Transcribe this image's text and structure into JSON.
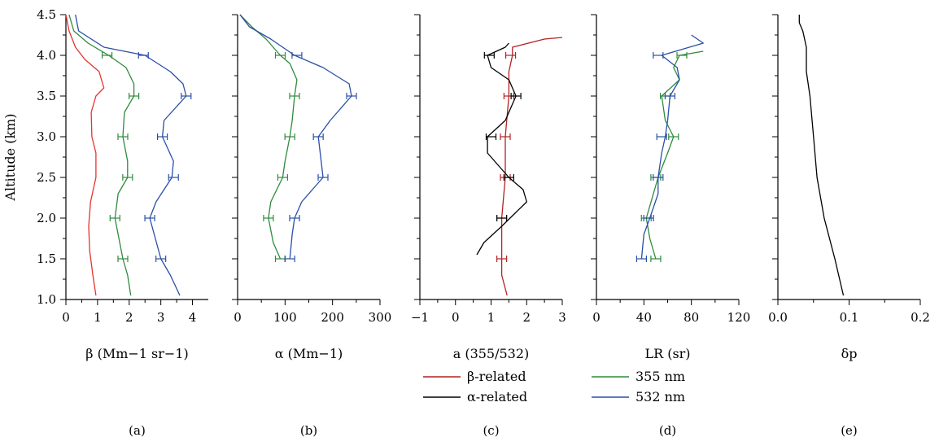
{
  "figure": {
    "ylabel": "Altitude (km)",
    "legend": [
      {
        "label": "β-related",
        "color": "#b22222"
      },
      {
        "label": "α-related",
        "color": "#000000"
      },
      {
        "label": "355 nm",
        "color": "#2e8b3d"
      },
      {
        "label": "532 nm",
        "color": "#2b4fa8"
      }
    ],
    "colors": {
      "red": "#e3342f",
      "dark_red": "#b22222",
      "green": "#2e8b3d",
      "blue": "#2b4fa8",
      "black": "#000000"
    }
  },
  "chart_data": [
    {
      "panel": "(a)",
      "type": "line",
      "xlabel": "β (Mm−1 sr−1)",
      "ylabel": "Altitude (km)",
      "xlim": [
        0,
        4.5
      ],
      "ylim": [
        1.0,
        4.5
      ],
      "xticks": [
        "0",
        "1",
        "2",
        "3",
        "4"
      ],
      "yticks": [
        "1.0",
        "1.5",
        "2.0",
        "2.5",
        "3.0",
        "3.5",
        "4.0",
        "4.5"
      ],
      "series": [
        {
          "color": "#e3342f",
          "points": [
            [
              0.95,
              1.05
            ],
            [
              0.85,
              1.3
            ],
            [
              0.75,
              1.6
            ],
            [
              0.72,
              1.9
            ],
            [
              0.78,
              2.2
            ],
            [
              0.95,
              2.5
            ],
            [
              0.95,
              2.8
            ],
            [
              0.82,
              3.0
            ],
            [
              0.8,
              3.3
            ],
            [
              0.95,
              3.5
            ],
            [
              1.2,
              3.6
            ],
            [
              1.05,
              3.8
            ],
            [
              0.6,
              3.95
            ],
            [
              0.3,
              4.1
            ],
            [
              0.1,
              4.3
            ],
            [
              0.0,
              4.5
            ]
          ]
        },
        {
          "color": "#2e8b3d",
          "points": [
            [
              2.05,
              1.05
            ],
            [
              1.95,
              1.3
            ],
            [
              1.8,
              1.5
            ],
            [
              1.55,
              2.0
            ],
            [
              1.65,
              2.3
            ],
            [
              1.95,
              2.5
            ],
            [
              1.95,
              2.7
            ],
            [
              1.8,
              3.0
            ],
            [
              1.85,
              3.3
            ],
            [
              2.15,
              3.5
            ],
            [
              2.15,
              3.65
            ],
            [
              1.9,
              3.85
            ],
            [
              1.35,
              4.0
            ],
            [
              0.7,
              4.15
            ],
            [
              0.25,
              4.3
            ],
            [
              0.1,
              4.5
            ]
          ],
          "error_bars": [
            [
              1.8,
              1.5
            ],
            [
              1.55,
              2.0
            ],
            [
              1.95,
              2.5
            ],
            [
              1.8,
              3.0
            ],
            [
              2.15,
              3.5
            ],
            [
              1.3,
              4.0
            ]
          ]
        },
        {
          "color": "#2b4fa8",
          "points": [
            [
              3.6,
              1.05
            ],
            [
              3.3,
              1.3
            ],
            [
              3.0,
              1.5
            ],
            [
              2.65,
              2.0
            ],
            [
              2.85,
              2.2
            ],
            [
              3.35,
              2.5
            ],
            [
              3.4,
              2.7
            ],
            [
              3.05,
              3.0
            ],
            [
              3.1,
              3.2
            ],
            [
              3.8,
              3.5
            ],
            [
              3.7,
              3.65
            ],
            [
              3.3,
              3.8
            ],
            [
              2.5,
              4.0
            ],
            [
              1.2,
              4.1
            ],
            [
              0.4,
              4.3
            ],
            [
              0.3,
              4.5
            ]
          ],
          "error_bars": [
            [
              3.0,
              1.5
            ],
            [
              2.65,
              2.0
            ],
            [
              3.4,
              2.5
            ],
            [
              3.05,
              3.0
            ],
            [
              3.8,
              3.5
            ],
            [
              2.45,
              4.0
            ]
          ]
        }
      ]
    },
    {
      "panel": "(b)",
      "type": "line",
      "xlabel": "α (Mm−1)",
      "ylabel": "",
      "xlim": [
        0,
        300
      ],
      "ylim": [
        1.0,
        4.5
      ],
      "xticks": [
        "0",
        "100",
        "200",
        "300"
      ],
      "series": [
        {
          "color": "#2e8b3d",
          "points": [
            [
              90,
              1.5
            ],
            [
              75,
              1.7
            ],
            [
              65,
              2.0
            ],
            [
              70,
              2.2
            ],
            [
              95,
              2.5
            ],
            [
              100,
              2.7
            ],
            [
              110,
              3.0
            ],
            [
              115,
              3.2
            ],
            [
              120,
              3.5
            ],
            [
              125,
              3.7
            ],
            [
              110,
              3.9
            ],
            [
              90,
              4.0
            ],
            [
              60,
              4.2
            ],
            [
              30,
              4.35
            ],
            [
              5,
              4.5
            ]
          ],
          "error_bars": [
            [
              90,
              1.5
            ],
            [
              65,
              2.0
            ],
            [
              95,
              2.5
            ],
            [
              110,
              3.0
            ],
            [
              120,
              3.5
            ],
            [
              90,
              4.0
            ]
          ]
        },
        {
          "color": "#2b4fa8",
          "points": [
            [
              110,
              1.5
            ],
            [
              115,
              1.8
            ],
            [
              120,
              2.0
            ],
            [
              135,
              2.2
            ],
            [
              180,
              2.5
            ],
            [
              175,
              2.75
            ],
            [
              170,
              3.0
            ],
            [
              195,
              3.2
            ],
            [
              240,
              3.5
            ],
            [
              235,
              3.65
            ],
            [
              180,
              3.85
            ],
            [
              120,
              4.0
            ],
            [
              70,
              4.2
            ],
            [
              25,
              4.35
            ],
            [
              5,
              4.5
            ]
          ],
          "error_bars": [
            [
              110,
              1.5
            ],
            [
              120,
              2.0
            ],
            [
              180,
              2.5
            ],
            [
              170,
              3.0
            ],
            [
              240,
              3.5
            ],
            [
              125,
              4.0
            ]
          ]
        }
      ]
    },
    {
      "panel": "(c)",
      "type": "line",
      "xlabel": "a (355/532)",
      "ylabel": "",
      "xlim": [
        -1,
        3
      ],
      "ylim": [
        1.0,
        4.5
      ],
      "xticks": [
        "−1",
        "0",
        "1",
        "2",
        "3"
      ],
      "series": [
        {
          "name": "β-related",
          "color": "#b22222",
          "points": [
            [
              1.45,
              1.05
            ],
            [
              1.3,
              1.3
            ],
            [
              1.3,
              1.5
            ],
            [
              1.3,
              2.0
            ],
            [
              1.4,
              2.5
            ],
            [
              1.4,
              3.0
            ],
            [
              1.5,
              3.5
            ],
            [
              1.5,
              3.8
            ],
            [
              1.6,
              4.0
            ],
            [
              1.6,
              4.1
            ],
            [
              2.5,
              4.2
            ],
            [
              3.0,
              4.22
            ]
          ],
          "error_bars": [
            [
              1.3,
              1.5
            ],
            [
              1.3,
              2.0
            ],
            [
              1.4,
              2.5
            ],
            [
              1.4,
              3.0
            ],
            [
              1.5,
              3.5
            ],
            [
              1.55,
              4.0
            ]
          ]
        },
        {
          "name": "α-related",
          "color": "#000000",
          "points": [
            [
              0.6,
              1.55
            ],
            [
              0.8,
              1.7
            ],
            [
              1.3,
              1.9
            ],
            [
              2.0,
              2.2
            ],
            [
              1.9,
              2.35
            ],
            [
              1.5,
              2.5
            ],
            [
              0.9,
              2.8
            ],
            [
              0.9,
              3.0
            ],
            [
              1.4,
              3.2
            ],
            [
              1.7,
              3.5
            ],
            [
              1.5,
              3.7
            ],
            [
              1.0,
              3.85
            ],
            [
              0.9,
              4.0
            ],
            [
              1.4,
              4.1
            ],
            [
              1.5,
              4.15
            ]
          ],
          "error_bars": [
            [
              1.3,
              2.0
            ],
            [
              1.5,
              2.5
            ],
            [
              1.0,
              3.0
            ],
            [
              1.7,
              3.5
            ],
            [
              0.95,
              4.0
            ]
          ]
        }
      ]
    },
    {
      "panel": "(d)",
      "type": "line",
      "xlabel": "LR (sr)",
      "ylabel": "",
      "xlim": [
        0,
        120
      ],
      "ylim": [
        1.0,
        4.5
      ],
      "xticks": [
        "0",
        "40",
        "80",
        "120"
      ],
      "series": [
        {
          "name": "355 nm",
          "color": "#2e8b3d",
          "points": [
            [
              50,
              1.5
            ],
            [
              45,
              1.75
            ],
            [
              42,
              2.0
            ],
            [
              48,
              2.3
            ],
            [
              52,
              2.5
            ],
            [
              60,
              2.8
            ],
            [
              65,
              3.0
            ],
            [
              58,
              3.2
            ],
            [
              55,
              3.5
            ],
            [
              70,
              3.7
            ],
            [
              65,
              3.85
            ],
            [
              70,
              4.0
            ],
            [
              90,
              4.05
            ]
          ],
          "error_bars": [
            [
              50,
              1.5
            ],
            [
              42,
              2.0
            ],
            [
              50,
              2.5
            ],
            [
              65,
              3.0
            ],
            [
              58,
              3.5
            ],
            [
              72,
              4.0
            ]
          ]
        },
        {
          "name": "532 nm",
          "color": "#2b4fa8",
          "points": [
            [
              38,
              1.5
            ],
            [
              40,
              1.8
            ],
            [
              45,
              2.0
            ],
            [
              52,
              2.3
            ],
            [
              52,
              2.5
            ],
            [
              55,
              2.8
            ],
            [
              58,
              3.0
            ],
            [
              60,
              3.2
            ],
            [
              62,
              3.5
            ],
            [
              70,
              3.7
            ],
            [
              68,
              3.85
            ],
            [
              55,
              4.0
            ],
            [
              90,
              4.15
            ],
            [
              80,
              4.25
            ]
          ],
          "error_bars": [
            [
              38,
              1.5
            ],
            [
              44,
              2.0
            ],
            [
              52,
              2.5
            ],
            [
              55,
              3.0
            ],
            [
              62,
              3.5
            ],
            [
              52,
              4.0
            ]
          ]
        }
      ]
    },
    {
      "panel": "(e)",
      "type": "line",
      "xlabel": "δp",
      "ylabel": "",
      "xlim": [
        0.0,
        0.2
      ],
      "ylim": [
        1.0,
        4.5
      ],
      "xticks": [
        "0.0",
        "0.1",
        "0.2"
      ],
      "series": [
        {
          "color": "#000000",
          "points": [
            [
              0.092,
              1.05
            ],
            [
              0.08,
              1.5
            ],
            [
              0.065,
              2.0
            ],
            [
              0.055,
              2.5
            ],
            [
              0.05,
              3.0
            ],
            [
              0.045,
              3.5
            ],
            [
              0.04,
              3.8
            ],
            [
              0.04,
              4.1
            ],
            [
              0.035,
              4.3
            ],
            [
              0.03,
              4.4
            ],
            [
              0.03,
              4.5
            ]
          ]
        }
      ]
    }
  ]
}
